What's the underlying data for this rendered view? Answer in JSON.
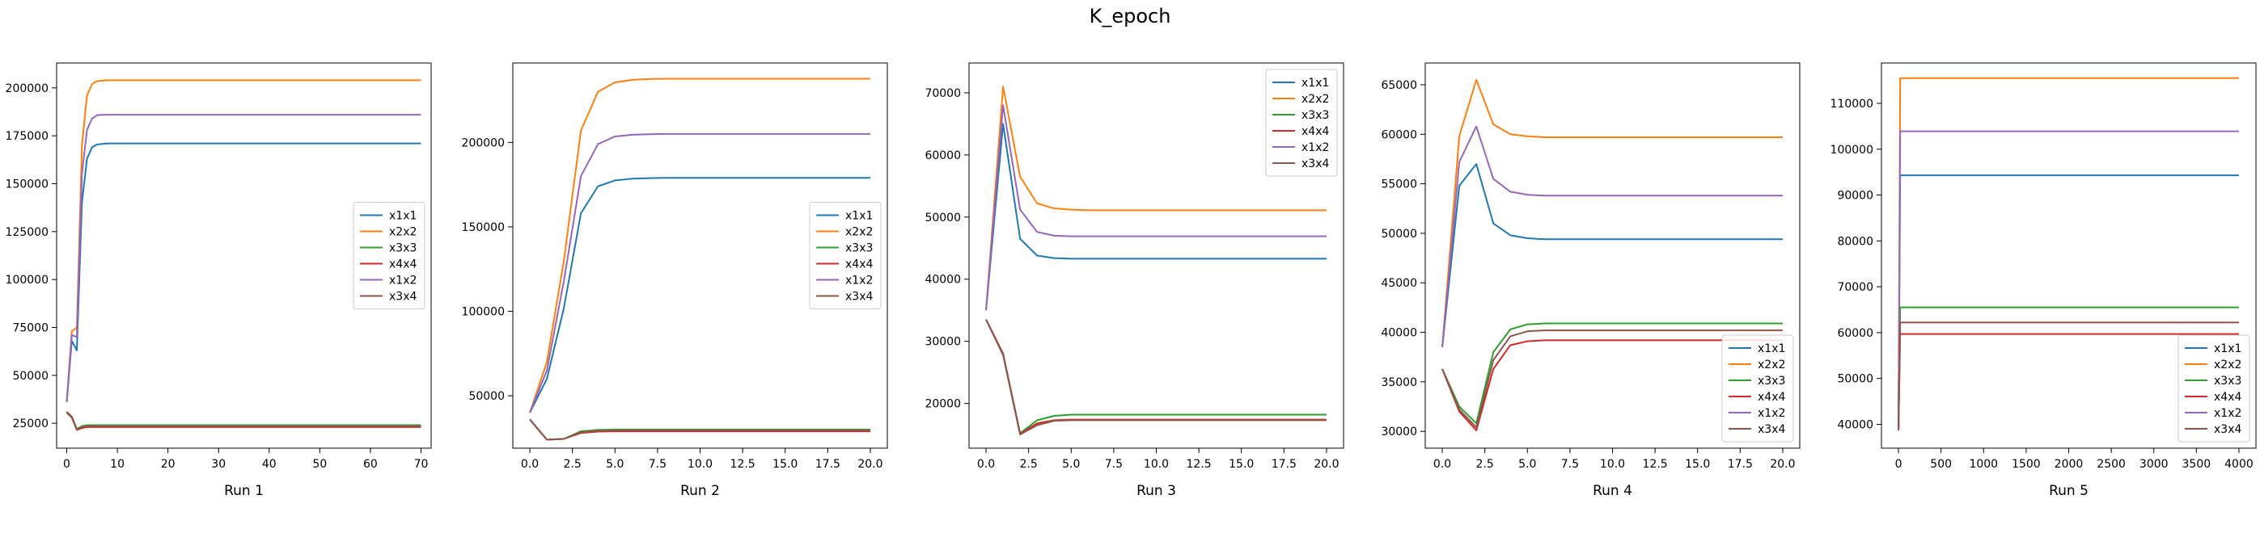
{
  "figure": {
    "suptitle": "K_epoch"
  },
  "colors": {
    "x1x1": "#1f77b4",
    "x2x2": "#ff7f0e",
    "x3x3": "#2ca02c",
    "x4x4": "#d62728",
    "x1x2": "#9467bd",
    "x3x4": "#8c564b"
  },
  "chart_data": [
    {
      "type": "line",
      "xlabel": "Run 1",
      "xlim": [
        -2,
        72
      ],
      "ylim": [
        12000,
        213000
      ],
      "xticks": [
        0,
        10,
        20,
        30,
        40,
        50,
        60,
        70
      ],
      "xtick_labels": [
        "0",
        "10",
        "20",
        "30",
        "40",
        "50",
        "60",
        "70"
      ],
      "yticks": [
        25000,
        50000,
        75000,
        100000,
        125000,
        150000,
        175000,
        200000
      ],
      "ytick_labels": [
        "25000",
        "50000",
        "75000",
        "100000",
        "125000",
        "150000",
        "175000",
        "200000"
      ],
      "legend_position": "center-right",
      "series": [
        {
          "name": "x1x1",
          "x": [
            0,
            1,
            2,
            3,
            4,
            5,
            6,
            8,
            10,
            20,
            70
          ],
          "values": [
            36000,
            68000,
            63000,
            140000,
            163000,
            169000,
            170500,
            171000,
            171000,
            171000,
            171000
          ]
        },
        {
          "name": "x2x2",
          "x": [
            0,
            1,
            2,
            3,
            4,
            5,
            6,
            8,
            10,
            20,
            70
          ],
          "values": [
            36000,
            73000,
            75000,
            170000,
            196000,
            202000,
            203500,
            204000,
            204000,
            204000,
            204000
          ]
        },
        {
          "name": "x3x3",
          "x": [
            0,
            1,
            2,
            3,
            4,
            5,
            70
          ],
          "values": [
            31000,
            28500,
            22000,
            23500,
            24000,
            24000,
            24000
          ]
        },
        {
          "name": "x4x4",
          "x": [
            0,
            1,
            2,
            3,
            4,
            5,
            70
          ],
          "values": [
            30500,
            28000,
            21500,
            22500,
            23000,
            23000,
            23000
          ]
        },
        {
          "name": "x1x2",
          "x": [
            0,
            1,
            2,
            3,
            4,
            5,
            6,
            8,
            10,
            20,
            70
          ],
          "values": [
            36000,
            71000,
            70000,
            155000,
            178000,
            184000,
            185800,
            186000,
            186000,
            186000,
            186000
          ]
        },
        {
          "name": "x3x4",
          "x": [
            0,
            1,
            2,
            3,
            4,
            5,
            70
          ],
          "values": [
            30800,
            28200,
            21800,
            23000,
            23500,
            23500,
            23500
          ]
        }
      ]
    },
    {
      "type": "line",
      "xlabel": "Run 2",
      "xlim": [
        -1,
        21
      ],
      "ylim": [
        19000,
        247000
      ],
      "xticks": [
        0,
        2.5,
        5,
        7.5,
        10,
        12.5,
        15,
        17.5,
        20
      ],
      "xtick_labels": [
        "0.0",
        "2.5",
        "5.0",
        "7.5",
        "10.0",
        "12.5",
        "15.0",
        "17.5",
        "20.0"
      ],
      "yticks": [
        50000,
        100000,
        150000,
        200000
      ],
      "ytick_labels": [
        "50000",
        "100000",
        "150000",
        "200000"
      ],
      "legend_position": "center-right",
      "series": [
        {
          "name": "x1x1",
          "x": [
            0,
            1,
            2,
            3,
            4,
            5,
            6,
            7,
            8,
            10,
            20
          ],
          "values": [
            40000,
            60000,
            102000,
            158000,
            174000,
            177500,
            178500,
            178800,
            179000,
            179000,
            179000
          ]
        },
        {
          "name": "x2x2",
          "x": [
            0,
            1,
            2,
            3,
            4,
            5,
            6,
            7,
            8,
            10,
            20
          ],
          "values": [
            40000,
            70000,
            130000,
            207000,
            230000,
            235500,
            237000,
            237500,
            237700,
            237700,
            237700
          ]
        },
        {
          "name": "x3x3",
          "x": [
            0,
            1,
            2,
            3,
            4,
            5,
            6,
            7,
            20
          ],
          "values": [
            36000,
            24000,
            24500,
            29000,
            29800,
            30000,
            30000,
            30000,
            30000
          ]
        },
        {
          "name": "x4x4",
          "x": [
            0,
            1,
            2,
            3,
            4,
            5,
            6,
            7,
            20
          ],
          "values": [
            36000,
            24000,
            24500,
            28000,
            28800,
            29000,
            29000,
            29000,
            29000
          ]
        },
        {
          "name": "x1x2",
          "x": [
            0,
            1,
            2,
            3,
            4,
            5,
            6,
            7,
            8,
            10,
            20
          ],
          "values": [
            40000,
            65000,
            118000,
            180000,
            199000,
            203500,
            204500,
            204800,
            205000,
            205000,
            205000
          ]
        },
        {
          "name": "x3x4",
          "x": [
            0,
            1,
            2,
            3,
            4,
            5,
            6,
            7,
            20
          ],
          "values": [
            36000,
            24000,
            24500,
            28500,
            29300,
            29500,
            29500,
            29500,
            29500
          ]
        }
      ]
    },
    {
      "type": "line",
      "xlabel": "Run 3",
      "xlim": [
        -1,
        21
      ],
      "ylim": [
        12800,
        74800
      ],
      "xticks": [
        0,
        2.5,
        5,
        7.5,
        10,
        12.5,
        15,
        17.5,
        20
      ],
      "xtick_labels": [
        "0.0",
        "2.5",
        "5.0",
        "7.5",
        "10.0",
        "12.5",
        "15.0",
        "17.5",
        "20.0"
      ],
      "yticks": [
        20000,
        30000,
        40000,
        50000,
        60000,
        70000
      ],
      "ytick_labels": [
        "20000",
        "30000",
        "40000",
        "50000",
        "60000",
        "70000"
      ],
      "legend_position": "top-right",
      "series": [
        {
          "name": "x1x1",
          "x": [
            0,
            1,
            2,
            3,
            4,
            5,
            6,
            8,
            20
          ],
          "values": [
            35000,
            65000,
            46500,
            43800,
            43400,
            43300,
            43300,
            43300,
            43300
          ]
        },
        {
          "name": "x2x2",
          "x": [
            0,
            1,
            2,
            3,
            4,
            5,
            6,
            8,
            20
          ],
          "values": [
            35000,
            71000,
            56500,
            52200,
            51400,
            51200,
            51100,
            51100,
            51100
          ]
        },
        {
          "name": "x3x3",
          "x": [
            0,
            1,
            2,
            3,
            4,
            5,
            6,
            8,
            20
          ],
          "values": [
            33500,
            28000,
            15200,
            17300,
            18000,
            18200,
            18200,
            18200,
            18200
          ]
        },
        {
          "name": "x4x4",
          "x": [
            0,
            1,
            2,
            3,
            4,
            5,
            6,
            8,
            20
          ],
          "values": [
            33500,
            28000,
            15100,
            16800,
            17300,
            17400,
            17400,
            17400,
            17400
          ]
        },
        {
          "name": "x1x2",
          "x": [
            0,
            1,
            2,
            3,
            4,
            5,
            6,
            8,
            20
          ],
          "values": [
            35000,
            68000,
            51200,
            47600,
            47000,
            46900,
            46900,
            46900,
            46900
          ]
        },
        {
          "name": "x3x4",
          "x": [
            0,
            1,
            2,
            3,
            4,
            5,
            6,
            8,
            20
          ],
          "values": [
            33500,
            27800,
            15000,
            16500,
            17200,
            17300,
            17300,
            17300,
            17300
          ]
        }
      ]
    },
    {
      "type": "line",
      "xlabel": "Run 4",
      "xlim": [
        -1,
        21
      ],
      "ylim": [
        28300,
        67200
      ],
      "xticks": [
        0,
        2.5,
        5,
        7.5,
        10,
        12.5,
        15,
        17.5,
        20
      ],
      "xtick_labels": [
        "0.0",
        "2.5",
        "5.0",
        "7.5",
        "10.0",
        "12.5",
        "15.0",
        "17.5",
        "20.0"
      ],
      "yticks": [
        30000,
        35000,
        40000,
        45000,
        50000,
        55000,
        60000,
        65000
      ],
      "ytick_labels": [
        "30000",
        "35000",
        "40000",
        "45000",
        "50000",
        "55000",
        "60000",
        "65000"
      ],
      "legend_position": "bottom-right",
      "series": [
        {
          "name": "x1x1",
          "x": [
            0,
            1,
            2,
            3,
            4,
            5,
            6,
            8,
            20
          ],
          "values": [
            38500,
            54800,
            57000,
            51000,
            49800,
            49500,
            49400,
            49400,
            49400
          ]
        },
        {
          "name": "x2x2",
          "x": [
            0,
            1,
            2,
            3,
            4,
            5,
            6,
            8,
            20
          ],
          "values": [
            38500,
            59800,
            65500,
            61000,
            60000,
            59800,
            59700,
            59700,
            59700
          ]
        },
        {
          "name": "x3x3",
          "x": [
            0,
            1,
            2,
            3,
            4,
            5,
            6,
            8,
            20
          ],
          "values": [
            36300,
            32500,
            30800,
            38000,
            40300,
            40800,
            40900,
            40900,
            40900
          ]
        },
        {
          "name": "x4x4",
          "x": [
            0,
            1,
            2,
            3,
            4,
            5,
            6,
            8,
            20
          ],
          "values": [
            36300,
            32000,
            30100,
            36300,
            38700,
            39100,
            39200,
            39200,
            39200
          ]
        },
        {
          "name": "x1x2",
          "x": [
            0,
            1,
            2,
            3,
            4,
            5,
            6,
            8,
            20
          ],
          "values": [
            38500,
            57200,
            60800,
            55500,
            54200,
            53900,
            53800,
            53800,
            53800
          ]
        },
        {
          "name": "x3x4",
          "x": [
            0,
            1,
            2,
            3,
            4,
            5,
            6,
            8,
            20
          ],
          "values": [
            36300,
            32200,
            30400,
            37200,
            39600,
            40100,
            40200,
            40200,
            40200
          ]
        }
      ]
    },
    {
      "type": "line",
      "xlabel": "Run 5",
      "xlim": [
        -200,
        4200
      ],
      "ylim": [
        34800,
        118800
      ],
      "xticks": [
        0,
        500,
        1000,
        1500,
        2000,
        2500,
        3000,
        3500,
        4000
      ],
      "xtick_labels": [
        "0",
        "500",
        "1000",
        "1500",
        "2000",
        "2500",
        "3000",
        "3500",
        "4000"
      ],
      "yticks": [
        40000,
        50000,
        60000,
        70000,
        80000,
        90000,
        100000,
        110000
      ],
      "ytick_labels": [
        "40000",
        "50000",
        "60000",
        "70000",
        "80000",
        "90000",
        "100000",
        "110000"
      ],
      "legend_position": "bottom-right",
      "series": [
        {
          "name": "x1x1",
          "x": [
            0,
            20,
            4000
          ],
          "values": [
            38700,
            94300,
            94300
          ]
        },
        {
          "name": "x2x2",
          "x": [
            0,
            20,
            4000
          ],
          "values": [
            38700,
            115500,
            115500
          ]
        },
        {
          "name": "x3x3",
          "x": [
            0,
            20,
            4000
          ],
          "values": [
            38700,
            65500,
            65500
          ]
        },
        {
          "name": "x4x4",
          "x": [
            0,
            20,
            4000
          ],
          "values": [
            38700,
            59700,
            59700
          ]
        },
        {
          "name": "x1x2",
          "x": [
            0,
            20,
            4000
          ],
          "values": [
            38700,
            103900,
            103900
          ]
        },
        {
          "name": "x3x4",
          "x": [
            0,
            20,
            4000
          ],
          "values": [
            38700,
            62200,
            62200
          ]
        }
      ]
    }
  ]
}
